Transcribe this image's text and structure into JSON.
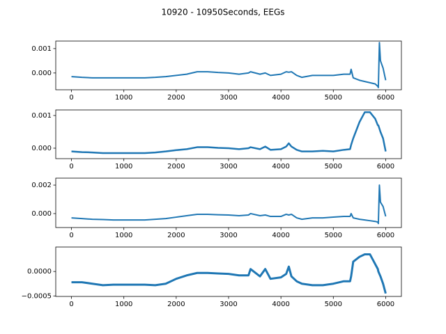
{
  "title": "10920 - 10950Seconds, EEGs",
  "chart_data": [
    {
      "type": "line",
      "x": [
        0,
        200,
        400,
        600,
        800,
        1000,
        1200,
        1400,
        1600,
        1800,
        2000,
        2200,
        2400,
        2600,
        2800,
        3000,
        3200,
        3380,
        3420,
        3600,
        3700,
        3800,
        4000,
        4100,
        4150,
        4200,
        4300,
        4400,
        4600,
        4800,
        5000,
        5200,
        5320,
        5340,
        5380,
        5500,
        5600,
        5700,
        5800,
        5850,
        5860,
        5880,
        5900,
        5950,
        6000
      ],
      "series": [
        {
          "color": "#1f77b4",
          "values": [
            -0.00015,
            -0.00018,
            -0.0002,
            -0.0002,
            -0.0002,
            -0.0002,
            -0.0002,
            -0.0002,
            -0.00018,
            -0.00015,
            -0.0001,
            -5e-05,
            5e-05,
            5e-05,
            2e-05,
            0,
            -5e-05,
            0,
            5e-05,
            -5e-05,
            0,
            -0.0001,
            -5e-05,
            5e-05,
            3e-05,
            5e-05,
            -0.0001,
            -0.00018,
            -0.0001,
            -0.0001,
            -0.0001,
            -5e-05,
            -5e-05,
            0.00015,
            -0.0002,
            -0.0003,
            -0.00035,
            -0.0004,
            -0.00045,
            -0.00055,
            -0.0006,
            0.00125,
            0.0005,
            0.0002,
            -0.0003
          ]
        }
      ],
      "xlim": [
        -300,
        6300
      ],
      "ylim": [
        -0.00069,
        0.00131
      ],
      "xticks": [
        0,
        1000,
        2000,
        3000,
        4000,
        5000,
        6000
      ],
      "yticks": [
        {
          "value": 0,
          "label": "0.000"
        },
        0.001
      ]
    },
    {
      "type": "line",
      "x": [
        0,
        200,
        400,
        600,
        800,
        1000,
        1200,
        1400,
        1600,
        1800,
        2000,
        2200,
        2400,
        2600,
        2800,
        3000,
        3200,
        3380,
        3420,
        3600,
        3700,
        3800,
        4000,
        4100,
        4150,
        4200,
        4300,
        4400,
        4600,
        4800,
        5000,
        5200,
        5320,
        5340,
        5380,
        5500,
        5600,
        5700,
        5800,
        5850,
        5860,
        5880,
        5900,
        5950,
        6000
      ],
      "series": [
        {
          "color": "#1f77b4",
          "values": [
            -0.0001,
            -0.00012,
            -0.00013,
            -0.00015,
            -0.00015,
            -0.00015,
            -0.00015,
            -0.00015,
            -0.00013,
            -0.0001,
            -6e-05,
            -3e-05,
            3e-05,
            3e-05,
            1e-05,
            0,
            -3e-05,
            0,
            3e-05,
            -3e-05,
            5e-05,
            -5e-05,
            -3e-05,
            5e-05,
            0.00015,
            5e-05,
            -5e-05,
            -0.0001,
            -0.0001,
            -8e-05,
            -0.0001,
            -5e-05,
            -3e-05,
            0.0001,
            0.0003,
            0.0008,
            0.0011,
            0.0011,
            0.0009,
            0.0007,
            0.0007,
            0.0006,
            0.0005,
            0.0003,
            -0.0001
          ]
        }
      ],
      "xlim": [
        -300,
        6300
      ],
      "ylim": [
        -0.00032,
        0.00117
      ],
      "xticks": [
        0,
        1000,
        2000,
        3000,
        4000,
        5000,
        6000
      ],
      "yticks": [
        {
          "value": 0,
          "label": "0.000"
        },
        0.001
      ]
    },
    {
      "type": "line",
      "x": [
        0,
        200,
        400,
        600,
        800,
        1000,
        1200,
        1400,
        1600,
        1800,
        2000,
        2200,
        2400,
        2600,
        2800,
        3000,
        3200,
        3380,
        3420,
        3600,
        3700,
        3800,
        4000,
        4100,
        4150,
        4200,
        4300,
        4400,
        4600,
        4800,
        5000,
        5200,
        5320,
        5340,
        5380,
        5500,
        5600,
        5700,
        5800,
        5850,
        5860,
        5880,
        5900,
        5950,
        6000
      ],
      "series": [
        {
          "color": "#1f77b4",
          "values": [
            -0.0003,
            -0.00035,
            -0.0004,
            -0.00042,
            -0.00045,
            -0.00045,
            -0.00045,
            -0.00045,
            -0.0004,
            -0.00035,
            -0.00025,
            -0.00015,
            -5e-05,
            -5e-05,
            -8e-05,
            -0.0001,
            -0.00015,
            -0.0001,
            0,
            -0.00015,
            -0.0001,
            -0.0002,
            -0.0002,
            -5e-05,
            -0.0001,
            -5e-05,
            -0.0003,
            -0.0004,
            -0.0003,
            -0.0003,
            -0.00025,
            -0.0002,
            -0.0002,
            0,
            -0.0003,
            -0.0004,
            -0.00045,
            -0.0005,
            -0.00055,
            -0.0006,
            -0.0007,
            0.002,
            0.0008,
            0.0005,
            -0.0002
          ]
        }
      ],
      "xlim": [
        -300,
        6300
      ],
      "ylim": [
        -0.00098,
        0.00249
      ],
      "xticks": [
        0,
        1000,
        2000,
        3000,
        4000,
        5000,
        6000
      ],
      "yticks": [
        {
          "value": 0,
          "label": "0.000"
        },
        0.002
      ]
    },
    {
      "type": "line",
      "x": [
        0,
        200,
        400,
        600,
        800,
        1000,
        1200,
        1400,
        1600,
        1800,
        2000,
        2200,
        2400,
        2600,
        2800,
        3000,
        3200,
        3380,
        3420,
        3600,
        3700,
        3800,
        4000,
        4100,
        4150,
        4200,
        4300,
        4400,
        4600,
        4800,
        5000,
        5200,
        5320,
        5340,
        5380,
        5500,
        5600,
        5700,
        5800,
        5850,
        5860,
        5880,
        5900,
        5950,
        6000
      ],
      "series": [
        {
          "color": "#1f77b4",
          "values": [
            -0.00022,
            -0.00022,
            -0.00025,
            -0.00028,
            -0.00027,
            -0.00027,
            -0.00027,
            -0.00027,
            -0.00028,
            -0.00025,
            -0.00015,
            -8e-05,
            -3e-05,
            -3e-05,
            -4e-05,
            -5e-05,
            -8e-05,
            -8e-05,
            5e-05,
            -0.0001,
            5e-05,
            -0.00015,
            -0.00012,
            -5e-05,
            0.0001,
            -0.0001,
            -0.0002,
            -0.00025,
            -0.00028,
            -0.00028,
            -0.00025,
            -0.0002,
            -0.0002,
            -0.0001,
            0.0002,
            0.0003,
            0.00035,
            0.00035,
            0.00015,
            5e-05,
            0,
            -5e-05,
            -0.0001,
            -0.00025,
            -0.00045
          ]
        }
      ],
      "xlim": [
        -300,
        6300
      ],
      "ylim": [
        -0.00051,
        0.0005
      ],
      "xticks": [
        0,
        1000,
        2000,
        3000,
        4000,
        5000,
        6000
      ],
      "yticks": [
        {
          "value": -0.0005,
          "label": "−0.0005"
        },
        {
          "value": 0,
          "label": "0.0000"
        }
      ]
    }
  ]
}
